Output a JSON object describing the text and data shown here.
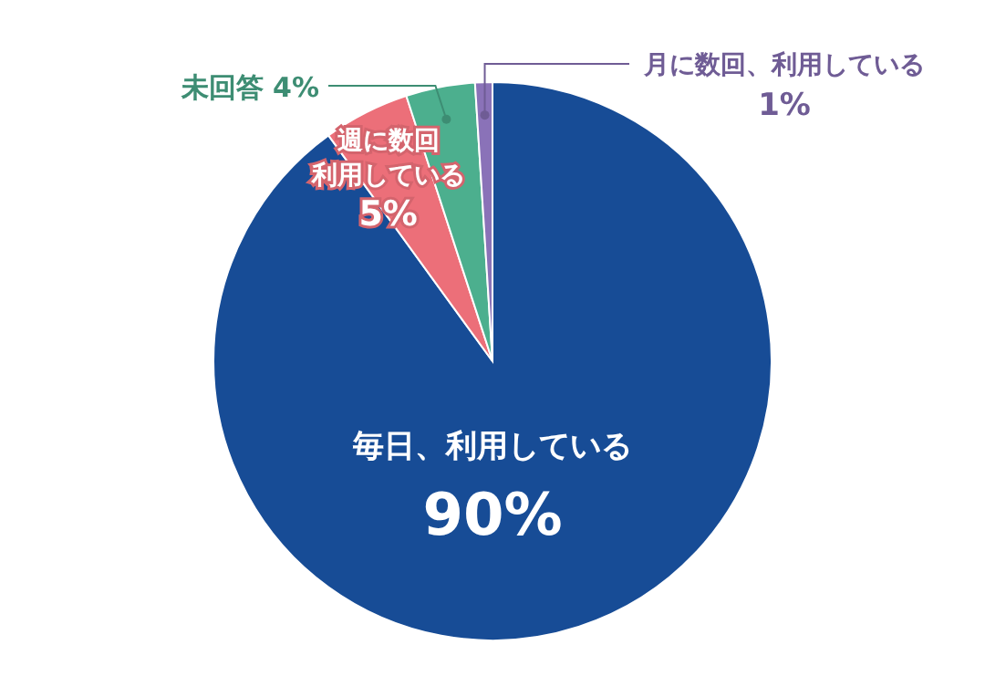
{
  "chart_data": {
    "type": "pie",
    "categories": [
      "毎日、利用している",
      "週に数回利用している",
      "未回答",
      "月に数回、利用している"
    ],
    "values": [
      90,
      5,
      4,
      1
    ],
    "colors": [
      "#174c96",
      "#ec6f79",
      "#4caf8e",
      "#8a72b8"
    ],
    "value_labels": [
      "90%",
      "5%",
      "4%",
      "1%"
    ]
  }
}
